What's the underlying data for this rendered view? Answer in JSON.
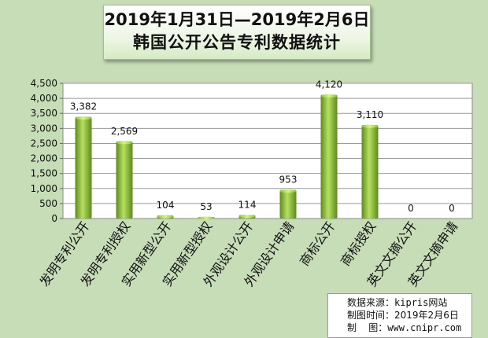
{
  "title": {
    "line1": "2019年1月31日—2019年2月6日",
    "line2": "韩国公开公告专利数据统计"
  },
  "chart_data": {
    "type": "bar",
    "categories": [
      "发明专利公开",
      "发明专利授权",
      "实用新型公开",
      "实用新型授权",
      "外观设计公开",
      "外观设计申请",
      "商标公开",
      "商标授权",
      "英文文摘公开",
      "英文文摘申请"
    ],
    "values": [
      3382,
      2569,
      104,
      53,
      114,
      953,
      4120,
      3110,
      0,
      0
    ],
    "value_labels": [
      "3,382",
      "2,569",
      "104",
      "53",
      "114",
      "953",
      "4,120",
      "3,110",
      "0",
      "0"
    ],
    "ylim": [
      0,
      4500
    ],
    "yticks": [
      0,
      500,
      1000,
      1500,
      2000,
      2500,
      3000,
      3500,
      4000,
      4500
    ],
    "ytick_labels": [
      "0",
      "500",
      "1,000",
      "1,500",
      "2,000",
      "2,500",
      "3,000",
      "3,500",
      "4,000",
      "4,500"
    ],
    "grid": true,
    "bar_color": "#8fbe3a",
    "plot_background": "#ffffff"
  },
  "source": {
    "line1_label": "数据来源：",
    "line1_value": "kipris网站",
    "line2_label": "制图时间：",
    "line2_value": "2019年2月6日",
    "line3_label": "制    图：",
    "line3_value": "www.cnipr.com"
  }
}
